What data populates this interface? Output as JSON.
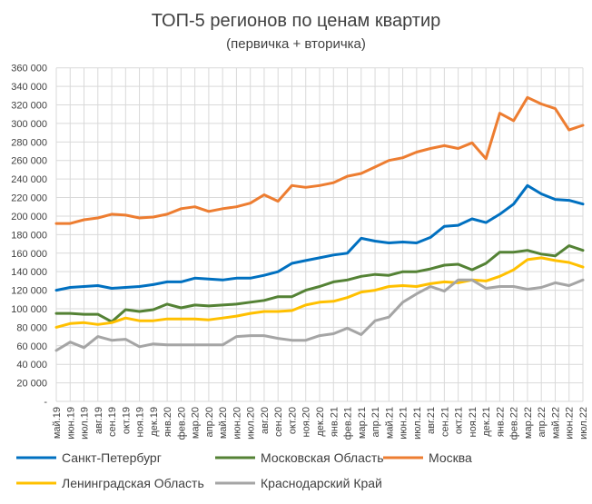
{
  "chart_data": {
    "type": "line",
    "title": "ТОП-5 регионов по ценам квартир",
    "subtitle": "(первичка + вторичка)",
    "xlabel": "",
    "ylabel": "",
    "ylim": [
      0,
      360000
    ],
    "yticks": [
      "-",
      "20 000",
      "40 000",
      "60 000",
      "80 000",
      "100 000",
      "120 000",
      "140 000",
      "160 000",
      "180 000",
      "200 000",
      "220 000",
      "240 000",
      "260 000",
      "280 000",
      "300 000",
      "320 000",
      "340 000",
      "360 000"
    ],
    "grid": true,
    "legend_position": "bottom",
    "categories": [
      "май.19",
      "июн.19",
      "июл.19",
      "авг.19",
      "сен.19",
      "окт.19",
      "ноя.19",
      "дек.19",
      "янв.20",
      "фев.20",
      "мар.20",
      "апр.20",
      "май.20",
      "июн.20",
      "июл.20",
      "авг.20",
      "сен.20",
      "окт.20",
      "ноя.20",
      "дек.20",
      "янв.21",
      "фев.21",
      "мар.21",
      "апр.21",
      "май.21",
      "июн.21",
      "июл.21",
      "авг.21",
      "сен.21",
      "окт.21",
      "ноя.21",
      "дек.21",
      "янв.22",
      "фев.22",
      "мар.22",
      "апр.22",
      "май.22",
      "июн.22",
      "июл.22"
    ],
    "series": [
      {
        "name": "Санкт-Петербург",
        "color": "#0070C0",
        "values": [
          120000,
          123000,
          124000,
          125000,
          122000,
          123000,
          124000,
          126000,
          129000,
          129000,
          133000,
          132000,
          131000,
          133000,
          133000,
          136000,
          140000,
          149000,
          152000,
          155000,
          158000,
          160000,
          176000,
          173000,
          171000,
          172000,
          171000,
          177000,
          189000,
          190000,
          197000,
          193000,
          202000,
          213000,
          233000,
          224000,
          218000,
          217000,
          213000
        ]
      },
      {
        "name": "Московская Область",
        "color": "#548235",
        "values": [
          95000,
          95000,
          94000,
          94000,
          86000,
          99000,
          97000,
          99000,
          105000,
          101000,
          104000,
          103000,
          104000,
          105000,
          107000,
          109000,
          113000,
          113000,
          120000,
          124000,
          129000,
          131000,
          135000,
          137000,
          136000,
          140000,
          140000,
          143000,
          147000,
          148000,
          142000,
          149000,
          161000,
          161000,
          163000,
          159000,
          157000,
          168000,
          163000
        ]
      },
      {
        "name": "Москва",
        "color": "#ED7D31",
        "values": [
          192000,
          192000,
          196000,
          198000,
          202000,
          201000,
          198000,
          199000,
          202000,
          208000,
          210000,
          205000,
          208000,
          210000,
          214000,
          223000,
          216000,
          233000,
          231000,
          233000,
          236000,
          243000,
          246000,
          253000,
          260000,
          263000,
          269000,
          273000,
          276000,
          273000,
          279000,
          262000,
          311000,
          303000,
          328000,
          321000,
          316000,
          293000,
          298000
        ]
      },
      {
        "name": "Ленинградская Область",
        "color": "#FFC000",
        "values": [
          80000,
          84000,
          85000,
          83000,
          85000,
          90000,
          87000,
          87000,
          89000,
          89000,
          89000,
          88000,
          90000,
          92000,
          95000,
          97000,
          97000,
          98000,
          104000,
          107000,
          108000,
          112000,
          118000,
          120000,
          124000,
          125000,
          124000,
          127000,
          129000,
          128000,
          131000,
          130000,
          135000,
          142000,
          153000,
          155000,
          152000,
          150000,
          145000
        ]
      },
      {
        "name": "Краснодарский Край",
        "color": "#A5A5A5",
        "values": [
          55000,
          64000,
          58000,
          70000,
          66000,
          67000,
          59000,
          62000,
          61000,
          61000,
          61000,
          61000,
          61000,
          70000,
          71000,
          71000,
          68000,
          66000,
          66000,
          71000,
          73000,
          79000,
          72000,
          87000,
          91000,
          107000,
          116000,
          124000,
          119000,
          131000,
          131000,
          122000,
          124000,
          124000,
          121000,
          123000,
          128000,
          125000,
          131000
        ]
      }
    ]
  }
}
